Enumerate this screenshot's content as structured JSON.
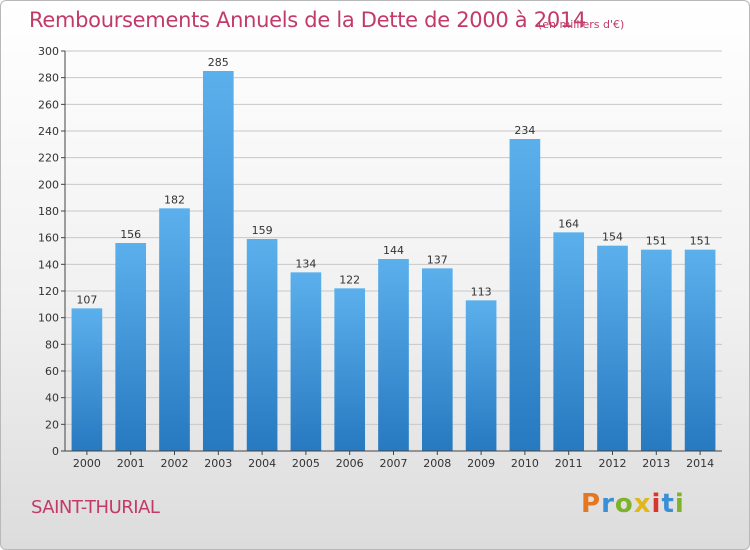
{
  "title": "Remboursements Annuels de la Dette de 2000 à 2014",
  "unit_note": "(en milliers d'€)",
  "commune": "SAINT-THURIAL",
  "logo": {
    "text": "Proxiti",
    "letter_colors": [
      "#e4771f",
      "#3a8fd6",
      "#7db32b",
      "#e0b81c",
      "#d9372a",
      "#3a8fd6",
      "#7db32b"
    ]
  },
  "colors": {
    "title": "#c23a6a",
    "bar_top": "#5bb0ec",
    "bar_bottom": "#2779c0",
    "grid": "#c8c8c8",
    "axis": "#444444"
  },
  "chart_data": {
    "type": "bar",
    "categories": [
      "2000",
      "2001",
      "2002",
      "2003",
      "2004",
      "2005",
      "2006",
      "2007",
      "2008",
      "2009",
      "2010",
      "2011",
      "2012",
      "2013",
      "2014"
    ],
    "values": [
      107,
      156,
      182,
      285,
      159,
      134,
      122,
      144,
      137,
      113,
      234,
      164,
      154,
      151,
      151
    ],
    "ylim": [
      0,
      300
    ],
    "yticks": [
      0,
      20,
      40,
      60,
      80,
      100,
      120,
      140,
      160,
      180,
      200,
      220,
      240,
      260,
      280,
      300
    ],
    "grid": true,
    "xlabel": "",
    "ylabel": ""
  }
}
